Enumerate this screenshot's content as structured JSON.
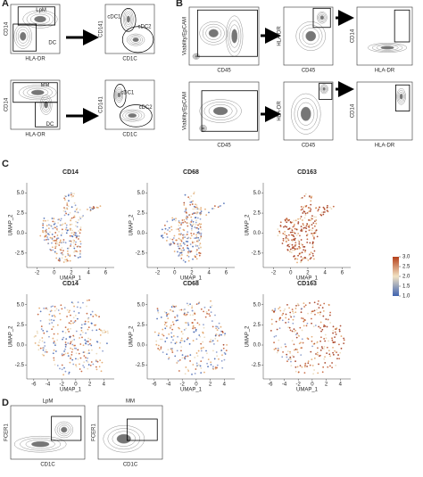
{
  "panel_a": {
    "letter": "A",
    "plots": [
      {
        "x_label": "HLA-DR",
        "y_label": "CD14",
        "gates": [
          "LpM",
          "DC"
        ]
      },
      {
        "x_label": "CD1C",
        "y_label": "CD141",
        "gates": [
          "cDC1",
          "cDC2"
        ]
      },
      {
        "x_label": "HLA-DR",
        "y_label": "CD14",
        "gates": [
          "MM",
          "DC"
        ]
      },
      {
        "x_label": "CD1C",
        "y_label": "CD141",
        "gates": [
          "cDC1",
          "cDC2"
        ]
      }
    ]
  },
  "panel_b": {
    "letter": "B",
    "plots": [
      {
        "x_label": "CD45",
        "y_label": "Viability/EpCAM"
      },
      {
        "x_label": "CD45",
        "y_label": "HLA-DR"
      },
      {
        "x_label": "HLA-DR",
        "y_label": "CD14"
      },
      {
        "x_label": "CD45",
        "y_label": "Viability/EpCAM"
      },
      {
        "x_label": "CD45",
        "y_label": "HLA-DR"
      },
      {
        "x_label": "HLA-DR",
        "y_label": "CD14"
      }
    ]
  },
  "panel_c": {
    "letter": "C",
    "colorbar_ticks": [
      {
        "value": 3,
        "label": "3.0"
      },
      2.5,
      {
        "value": 2,
        "label": "2.0"
      },
      1.5,
      {
        "value": 1,
        "label": "1.0"
      }
    ],
    "rows": [
      {
        "titles": [
          "CD14",
          "CD68",
          "CD163"
        ],
        "x_label": "UMAP_1",
        "y_label": "UMAP_2",
        "xlim": [
          -3.2,
          7
        ],
        "ylim": [
          -4.3,
          6.3
        ],
        "xticks": [
          -2,
          0,
          2,
          4,
          6
        ],
        "yticks": [
          -2.5,
          {
            "value": 0,
            "label": "0.0"
          },
          2.5,
          {
            "value": 5,
            "label": "5.0"
          }
        ]
      },
      {
        "titles": [
          "CD14",
          "CD68",
          "CD163"
        ],
        "x_label": "UMAP_1",
        "y_label": "UMAP_2",
        "xlim": [
          -7,
          5.5
        ],
        "ylim": [
          -4.2,
          6.3
        ],
        "xticks": [
          -6,
          -4,
          -2,
          0,
          2,
          4
        ],
        "yticks": [
          -2.5,
          {
            "value": 0,
            "label": "0.0"
          },
          2.5,
          {
            "value": 5,
            "label": "5.0"
          }
        ]
      }
    ]
  },
  "panel_d": {
    "letter": "D",
    "plots": [
      {
        "title": "LpM",
        "x_label": "CD1C",
        "y_label": "FCER1"
      },
      {
        "title": "MM",
        "x_label": "CD1C",
        "y_label": "FCER1"
      }
    ]
  }
}
